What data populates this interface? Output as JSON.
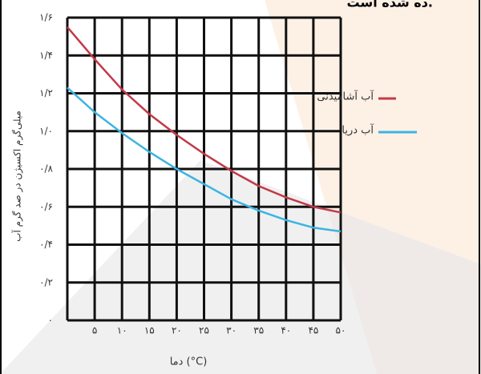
{
  "header": {
    "fragment": "ده شده است."
  },
  "chart_data": {
    "type": "line",
    "y_label": "میلی‌گرم اکسیژن در صد گرم آب",
    "x_label": "دما (°C)",
    "x": [
      0,
      5,
      10,
      15,
      20,
      25,
      30,
      35,
      40,
      45,
      50
    ],
    "xlim": [
      0,
      50
    ],
    "xticks": [
      {
        "value": 5,
        "label": "۵"
      },
      {
        "value": 10,
        "label": "۱۰"
      },
      {
        "value": 15,
        "label": "۱۵"
      },
      {
        "value": 20,
        "label": "۲۰"
      },
      {
        "value": 25,
        "label": "۲۵"
      },
      {
        "value": 30,
        "label": "۳۰"
      },
      {
        "value": 35,
        "label": "۳۵"
      },
      {
        "value": 40,
        "label": "۴۰"
      },
      {
        "value": 45,
        "label": "۴۵"
      },
      {
        "value": 50,
        "label": "۵۰"
      }
    ],
    "ylim": [
      0,
      1.6
    ],
    "yticks": [
      {
        "value": 0,
        "label": "۰"
      },
      {
        "value": 0.2,
        "label": "۰/۲"
      },
      {
        "value": 0.4,
        "label": "۰/۴"
      },
      {
        "value": 0.6,
        "label": "۰/۶"
      },
      {
        "value": 0.8,
        "label": "۰/۸"
      },
      {
        "value": 1.0,
        "label": "۱/۰"
      },
      {
        "value": 1.2,
        "label": "۱/۲"
      },
      {
        "value": 1.4,
        "label": "۱/۴"
      },
      {
        "value": 1.6,
        "label": "۱/۶"
      }
    ],
    "grid": true,
    "series": [
      {
        "name": "آب آشامیدنی",
        "color": "#c23a48",
        "values": [
          1.55,
          1.38,
          1.22,
          1.09,
          0.98,
          0.88,
          0.79,
          0.71,
          0.65,
          0.6,
          0.57
        ]
      },
      {
        "name": "آب دریا",
        "color": "#3db4e2",
        "values": [
          1.23,
          1.1,
          0.99,
          0.89,
          0.8,
          0.72,
          0.64,
          0.58,
          0.53,
          0.49,
          0.47
        ]
      }
    ]
  }
}
